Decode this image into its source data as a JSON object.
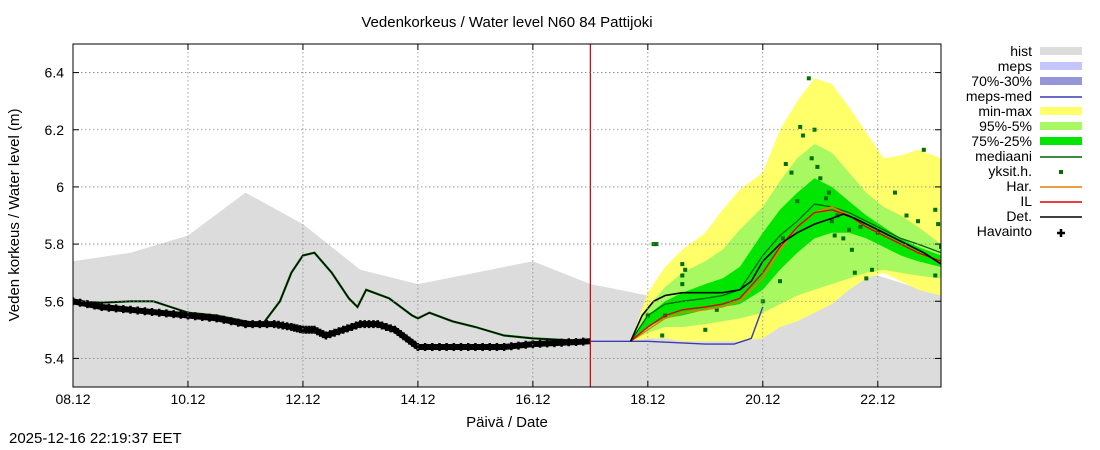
{
  "chart_data": {
    "type": "line",
    "title": "Vedenkorkeus / Water level   N60 84 Pattijoki",
    "xlabel": "Päivä / Date",
    "ylabel": "Veden korkeus / Water level (m)",
    "xlim": [
      8.0,
      23.1
    ],
    "ylim": [
      5.3,
      6.5
    ],
    "x_ticks": [
      {
        "value": 8,
        "label": "08.12"
      },
      {
        "value": 10,
        "label": "10.12"
      },
      {
        "value": 12,
        "label": "12.12"
      },
      {
        "value": 14,
        "label": "14.12"
      },
      {
        "value": 16,
        "label": "16.12"
      },
      {
        "value": 18,
        "label": "18.12"
      },
      {
        "value": 20,
        "label": "20.12"
      },
      {
        "value": 22,
        "label": "22.12"
      }
    ],
    "y_ticks": [
      {
        "value": 5.4,
        "label": "5.4"
      },
      {
        "value": 5.6,
        "label": "5.6"
      },
      {
        "value": 5.8,
        "label": "5.8"
      },
      {
        "value": 6.0,
        "label": "6"
      },
      {
        "value": 6.2,
        "label": "6.2"
      },
      {
        "value": 6.4,
        "label": "6.4"
      }
    ],
    "grid": true,
    "forecast_start": 17.0,
    "colors": {
      "hist": "#dcdcdc",
      "meps": "#c4c4ff",
      "meps_70_30": "#9595d8",
      "meps_med": "#3b3bb2",
      "min_max": "#ffff6a",
      "p95_5": "#a8f862",
      "p75_25": "#00e600",
      "mediaani": "#006400",
      "yksit": "#007000",
      "har": "#e67e00",
      "il": "#e00000",
      "det": "#000000",
      "havainto": "#000000",
      "now_line": "#cc0000"
    },
    "legend": [
      {
        "key": "hist",
        "label": "hist",
        "style": "band"
      },
      {
        "key": "meps",
        "label": "meps",
        "style": "band"
      },
      {
        "key": "meps_70_30",
        "label": "70%-30%",
        "style": "band"
      },
      {
        "key": "meps_med",
        "label": "meps-med",
        "style": "line"
      },
      {
        "key": "min_max",
        "label": "min-max",
        "style": "band"
      },
      {
        "key": "p95_5",
        "label": "95%-5%",
        "style": "band"
      },
      {
        "key": "p75_25",
        "label": "75%-25%",
        "style": "band"
      },
      {
        "key": "mediaani",
        "label": "mediaani",
        "style": "line"
      },
      {
        "key": "yksit",
        "label": "yksit.h.",
        "style": "dot"
      },
      {
        "key": "har",
        "label": "Har.",
        "style": "line"
      },
      {
        "key": "il",
        "label": "IL",
        "style": "line"
      },
      {
        "key": "det",
        "label": "Det.",
        "style": "line"
      },
      {
        "key": "havainto",
        "label": "Havainto",
        "style": "cross"
      }
    ],
    "series": {
      "hist_upper": {
        "x": [
          8.0,
          9.0,
          10.0,
          11.0,
          12.0,
          13.0,
          14.0,
          15.0,
          16.0,
          17.0,
          18.0,
          19.0,
          20.0,
          21.0,
          22.0,
          23.1
        ],
        "y": [
          5.74,
          5.77,
          5.83,
          5.98,
          5.87,
          5.71,
          5.66,
          5.7,
          5.74,
          5.66,
          5.62,
          5.65,
          5.69,
          5.72,
          5.69,
          5.62
        ]
      },
      "hist_lower": 5.3,
      "min_max": {
        "x": [
          17.7,
          18.0,
          18.3,
          18.6,
          19.0,
          19.3,
          19.6,
          20.0,
          20.3,
          20.6,
          20.9,
          21.2,
          21.5,
          21.8,
          22.1,
          22.4,
          22.7,
          23.1
        ],
        "upper": [
          5.46,
          5.63,
          5.72,
          5.78,
          5.84,
          5.92,
          5.99,
          6.05,
          6.2,
          6.3,
          6.38,
          6.36,
          6.28,
          6.19,
          6.1,
          6.11,
          6.13,
          6.1
        ],
        "lower": [
          5.46,
          5.47,
          5.47,
          5.46,
          5.46,
          5.46,
          5.46,
          5.47,
          5.51,
          5.53,
          5.56,
          5.59,
          5.64,
          5.68,
          5.7,
          5.67,
          5.64,
          5.62
        ]
      },
      "p95_5": {
        "x": [
          17.7,
          18.0,
          18.3,
          18.6,
          19.0,
          19.3,
          19.6,
          20.0,
          20.3,
          20.6,
          20.9,
          21.2,
          21.5,
          21.8,
          22.1,
          22.4,
          22.7,
          23.1
        ],
        "upper": [
          5.46,
          5.58,
          5.65,
          5.7,
          5.74,
          5.78,
          5.85,
          5.93,
          6.02,
          6.1,
          6.15,
          6.12,
          6.05,
          5.98,
          5.93,
          5.9,
          5.86,
          5.8
        ],
        "lower": [
          5.46,
          5.49,
          5.51,
          5.51,
          5.52,
          5.53,
          5.54,
          5.56,
          5.59,
          5.62,
          5.64,
          5.66,
          5.68,
          5.7,
          5.71,
          5.7,
          5.69,
          5.68
        ]
      },
      "p75_25": {
        "x": [
          17.7,
          18.0,
          18.3,
          18.6,
          19.0,
          19.3,
          19.6,
          20.0,
          20.3,
          20.6,
          20.9,
          21.2,
          21.5,
          21.8,
          22.1,
          22.4,
          22.7,
          23.1
        ],
        "upper": [
          5.46,
          5.55,
          5.6,
          5.63,
          5.66,
          5.68,
          5.72,
          5.84,
          5.92,
          5.98,
          6.03,
          6.0,
          5.95,
          5.9,
          5.86,
          5.82,
          5.79,
          5.76
        ],
        "lower": [
          5.46,
          5.51,
          5.54,
          5.55,
          5.57,
          5.58,
          5.59,
          5.64,
          5.71,
          5.77,
          5.82,
          5.84,
          5.84,
          5.82,
          5.79,
          5.76,
          5.74,
          5.72
        ]
      },
      "mediaani": {
        "x": [
          17.7,
          18.0,
          18.3,
          18.6,
          19.0,
          19.3,
          19.6,
          20.0,
          20.3,
          20.6,
          20.9,
          21.2,
          21.5,
          21.8,
          22.1,
          22.4,
          22.7,
          23.1
        ],
        "y": [
          5.46,
          5.55,
          5.59,
          5.6,
          5.61,
          5.62,
          5.64,
          5.76,
          5.83,
          5.88,
          5.94,
          5.93,
          5.91,
          5.88,
          5.85,
          5.82,
          5.8,
          5.77
        ]
      },
      "har": {
        "x": [
          17.7,
          18.0,
          18.3,
          18.6,
          19.0,
          19.3,
          19.6,
          20.0,
          20.3,
          20.6,
          20.9,
          21.2,
          21.5,
          21.8,
          22.1,
          22.4,
          22.7,
          23.1
        ],
        "y": [
          5.46,
          5.5,
          5.54,
          5.56,
          5.57,
          5.58,
          5.6,
          5.68,
          5.78,
          5.86,
          5.91,
          5.93,
          5.9,
          5.86,
          5.83,
          5.8,
          5.77,
          5.74
        ]
      },
      "il": {
        "x": [
          17.7,
          18.0,
          18.3,
          18.6,
          19.0,
          19.3,
          19.6,
          20.0,
          20.3,
          20.6,
          20.9,
          21.2,
          21.5,
          21.8,
          22.1,
          22.4,
          22.7,
          23.1
        ],
        "y": [
          5.46,
          5.51,
          5.55,
          5.57,
          5.58,
          5.59,
          5.61,
          5.7,
          5.79,
          5.86,
          5.91,
          5.92,
          5.9,
          5.86,
          5.83,
          5.8,
          5.77,
          5.74
        ]
      },
      "det_forecast": {
        "x": [
          17.7,
          17.9,
          18.1,
          18.3,
          18.6,
          19.0,
          19.3,
          19.6,
          19.8,
          20.0,
          20.3,
          20.6,
          20.9,
          21.2,
          21.4,
          21.6,
          21.9,
          22.2,
          22.5,
          22.8,
          23.1
        ],
        "y": [
          5.46,
          5.55,
          5.6,
          5.62,
          5.63,
          5.63,
          5.63,
          5.64,
          5.67,
          5.74,
          5.8,
          5.84,
          5.87,
          5.89,
          5.905,
          5.89,
          5.86,
          5.83,
          5.8,
          5.77,
          5.73
        ]
      },
      "meps_med": {
        "x": [
          17.0,
          17.5,
          18.0,
          18.5,
          19.0,
          19.5,
          19.8,
          20.0
        ],
        "y": [
          5.46,
          5.46,
          5.46,
          5.455,
          5.45,
          5.45,
          5.47,
          5.58
        ]
      },
      "model_past": {
        "x": [
          8.0,
          8.5,
          9.0,
          9.4,
          9.7,
          10.0,
          10.5,
          11.0,
          11.3,
          11.6,
          11.8,
          12.0,
          12.2,
          12.5,
          12.8,
          12.95,
          13.1,
          13.5,
          13.9,
          14.0,
          14.2,
          14.6,
          15.0,
          15.5,
          16.0,
          16.5,
          17.0
        ],
        "y": [
          5.6,
          5.595,
          5.6,
          5.6,
          5.58,
          5.56,
          5.55,
          5.53,
          5.52,
          5.6,
          5.7,
          5.76,
          5.77,
          5.7,
          5.61,
          5.58,
          5.64,
          5.61,
          5.55,
          5.54,
          5.56,
          5.53,
          5.51,
          5.48,
          5.47,
          5.465,
          5.46
        ]
      },
      "havainto": {
        "x": [
          8.0,
          8.5,
          9.0,
          9.5,
          10.0,
          10.5,
          11.0,
          11.5,
          11.8,
          12.0,
          12.2,
          12.4,
          12.7,
          13.0,
          13.3,
          13.6,
          13.8,
          14.0,
          14.5,
          15.0,
          15.5,
          16.0,
          16.5,
          17.0
        ],
        "y": [
          5.6,
          5.58,
          5.57,
          5.56,
          5.55,
          5.54,
          5.52,
          5.52,
          5.51,
          5.5,
          5.5,
          5.48,
          5.5,
          5.52,
          5.52,
          5.5,
          5.47,
          5.44,
          5.44,
          5.44,
          5.44,
          5.45,
          5.455,
          5.46
        ]
      }
    },
    "yksit": [
      [
        18.1,
        5.8
      ],
      [
        18.15,
        5.8
      ],
      [
        18.6,
        5.73
      ],
      [
        18.65,
        5.71
      ],
      [
        18.6,
        5.69
      ],
      [
        18.6,
        5.66
      ],
      [
        18.0,
        5.55
      ],
      [
        18.25,
        5.48
      ],
      [
        18.3,
        5.55
      ],
      [
        19.0,
        5.5
      ],
      [
        19.2,
        5.57
      ],
      [
        20.0,
        5.6
      ],
      [
        20.3,
        5.67
      ],
      [
        20.4,
        6.08
      ],
      [
        20.5,
        6.05
      ],
      [
        20.65,
        6.21
      ],
      [
        20.7,
        6.18
      ],
      [
        20.8,
        6.38
      ],
      [
        20.85,
        6.1
      ],
      [
        20.9,
        6.2
      ],
      [
        20.95,
        6.07
      ],
      [
        21.0,
        6.03
      ],
      [
        21.1,
        5.96
      ],
      [
        21.15,
        5.98
      ],
      [
        21.2,
        5.88
      ],
      [
        21.3,
        5.9
      ],
      [
        21.4,
        5.82
      ],
      [
        21.5,
        5.85
      ],
      [
        21.55,
        5.78
      ],
      [
        21.6,
        5.7
      ],
      [
        21.7,
        5.86
      ],
      [
        21.8,
        5.68
      ],
      [
        21.9,
        5.71
      ],
      [
        22.0,
        5.84
      ],
      [
        22.3,
        5.98
      ],
      [
        22.5,
        5.9
      ],
      [
        22.7,
        5.88
      ],
      [
        22.8,
        6.13
      ],
      [
        23.0,
        5.92
      ],
      [
        23.05,
        5.87
      ],
      [
        23.0,
        5.69
      ],
      [
        23.1,
        5.79
      ],
      [
        20.6,
        5.95
      ],
      [
        20.35,
        5.82
      ],
      [
        21.25,
        5.83
      ]
    ]
  },
  "footer": {
    "timestamp": "2025-12-16 22:19:37 EET"
  }
}
